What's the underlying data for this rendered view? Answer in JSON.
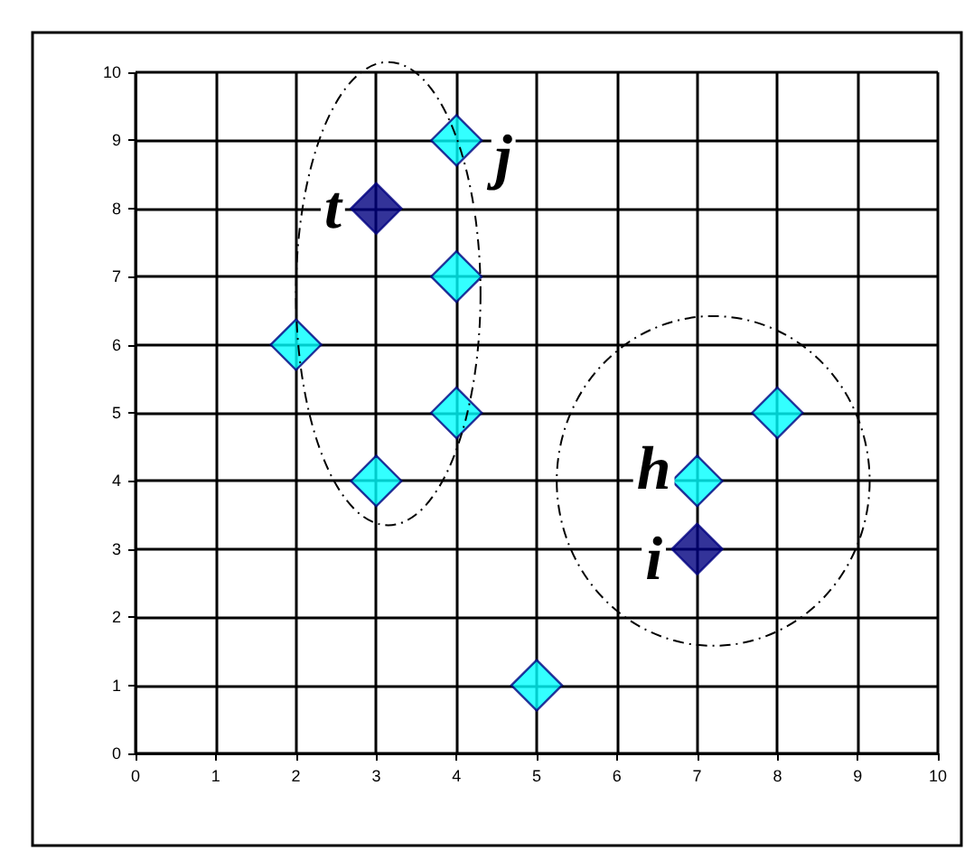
{
  "chart_data": {
    "type": "scatter",
    "marker": "diamond",
    "grid": true,
    "xlim": [
      0,
      10
    ],
    "ylim": [
      0,
      10
    ],
    "xticks": [
      0,
      1,
      2,
      3,
      4,
      5,
      6,
      7,
      8,
      9,
      10
    ],
    "yticks": [
      0,
      1,
      2,
      3,
      4,
      5,
      6,
      7,
      8,
      9,
      10
    ],
    "series": [
      {
        "color": "#00ffff",
        "x": [
          2,
          3,
          4,
          4,
          4,
          5,
          7,
          8
        ],
        "values": [
          6,
          4,
          5,
          7,
          9,
          1,
          4,
          5
        ]
      },
      {
        "color": "#000080",
        "x": [
          3,
          7
        ],
        "values": [
          8,
          3
        ]
      }
    ],
    "annotations": [
      {
        "text": "t",
        "x": 3,
        "y": 8
      },
      {
        "text": "j",
        "x": 4,
        "y": 9
      },
      {
        "text": "h",
        "x": 7,
        "y": 4
      },
      {
        "text": "i",
        "x": 7,
        "y": 3
      }
    ]
  }
}
